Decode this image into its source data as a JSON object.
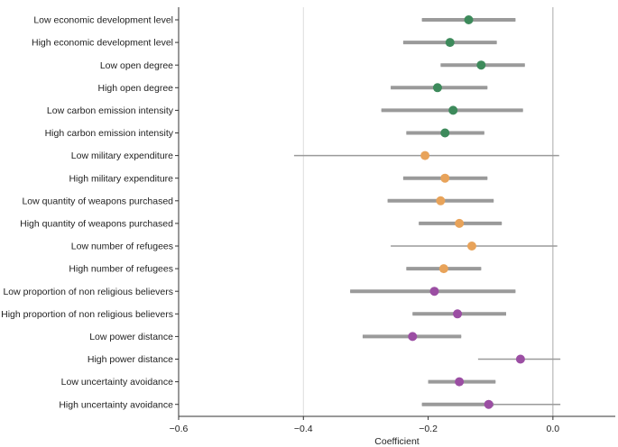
{
  "chart_data": {
    "type": "forest",
    "xlabel": "Coefficient",
    "xlim": [
      -0.6,
      0.1
    ],
    "x_ticks": [
      -0.6,
      -0.4,
      -0.2,
      0.0
    ],
    "x_tick_labels": [
      "−0.6",
      "−0.4",
      "−0.2",
      "0.0"
    ],
    "grid": "vertical lines at -0.4 and 0.0",
    "colors": {
      "economic": "#3d8a5b",
      "military": "#e8a35a",
      "cultural": "#9b4ea3",
      "ci_bar": "#9a9a9a",
      "reference_line": "#aaaaaa"
    },
    "rows": [
      {
        "label": "Low economic development level",
        "group": "economic",
        "estimate": -0.135,
        "ci95": [
          -0.21,
          -0.06
        ],
        "ci90": [
          -0.21,
          -0.06
        ]
      },
      {
        "label": "High economic development level",
        "group": "economic",
        "estimate": -0.165,
        "ci95": [
          -0.24,
          -0.09
        ],
        "ci90": [
          -0.24,
          -0.09
        ]
      },
      {
        "label": "Low open degree",
        "group": "economic",
        "estimate": -0.115,
        "ci95": [
          -0.18,
          -0.045
        ],
        "ci90": [
          -0.18,
          -0.045
        ]
      },
      {
        "label": "High open degree",
        "group": "economic",
        "estimate": -0.185,
        "ci95": [
          -0.26,
          -0.105
        ],
        "ci90": [
          -0.26,
          -0.105
        ]
      },
      {
        "label": "Low carbon emission intensity",
        "group": "economic",
        "estimate": -0.16,
        "ci95": [
          -0.275,
          -0.048
        ],
        "ci90": [
          -0.275,
          -0.048
        ]
      },
      {
        "label": "High carbon emission intensity",
        "group": "economic",
        "estimate": -0.173,
        "ci95": [
          -0.235,
          -0.11
        ],
        "ci90": [
          -0.235,
          -0.11
        ]
      },
      {
        "label": "Low military expenditure",
        "group": "military",
        "estimate": -0.205,
        "ci95": [
          -0.415,
          0.01
        ],
        "ci90": null
      },
      {
        "label": "High military expenditure",
        "group": "military",
        "estimate": -0.173,
        "ci95": [
          -0.24,
          -0.105
        ],
        "ci90": [
          -0.24,
          -0.105
        ]
      },
      {
        "label": "Low quantity of weapons purchased",
        "group": "military",
        "estimate": -0.18,
        "ci95": [
          -0.265,
          -0.095
        ],
        "ci90": [
          -0.265,
          -0.095
        ]
      },
      {
        "label": "High quantity of weapons purchased",
        "group": "military",
        "estimate": -0.15,
        "ci95": [
          -0.215,
          -0.082
        ],
        "ci90": [
          -0.215,
          -0.082
        ]
      },
      {
        "label": "Low number of refugees",
        "group": "military",
        "estimate": -0.13,
        "ci95": [
          -0.26,
          0.007
        ],
        "ci90": null
      },
      {
        "label": "High number of refugees",
        "group": "military",
        "estimate": -0.175,
        "ci95": [
          -0.235,
          -0.115
        ],
        "ci90": [
          -0.235,
          -0.115
        ]
      },
      {
        "label": "Low proportion of non religious believers",
        "group": "cultural",
        "estimate": -0.19,
        "ci95": [
          -0.325,
          -0.06
        ],
        "ci90": [
          -0.325,
          -0.06
        ]
      },
      {
        "label": "High proportion of non religious believers",
        "group": "cultural",
        "estimate": -0.153,
        "ci95": [
          -0.225,
          -0.075
        ],
        "ci90": [
          -0.225,
          -0.075
        ]
      },
      {
        "label": "Low power distance",
        "group": "cultural",
        "estimate": -0.225,
        "ci95": [
          -0.305,
          -0.147
        ],
        "ci90": [
          -0.305,
          -0.147
        ]
      },
      {
        "label": "High power distance",
        "group": "cultural",
        "estimate": -0.052,
        "ci95": [
          -0.12,
          0.012
        ],
        "ci90": null
      },
      {
        "label": "Low uncertainty avoidance",
        "group": "cultural",
        "estimate": -0.15,
        "ci95": [
          -0.2,
          -0.092
        ],
        "ci90": [
          -0.2,
          -0.092
        ]
      },
      {
        "label": "High uncertainty avoidance",
        "group": "cultural",
        "estimate": -0.103,
        "ci95": [
          -0.21,
          0.012
        ],
        "ci90": [
          -0.21,
          -0.095
        ]
      }
    ]
  }
}
